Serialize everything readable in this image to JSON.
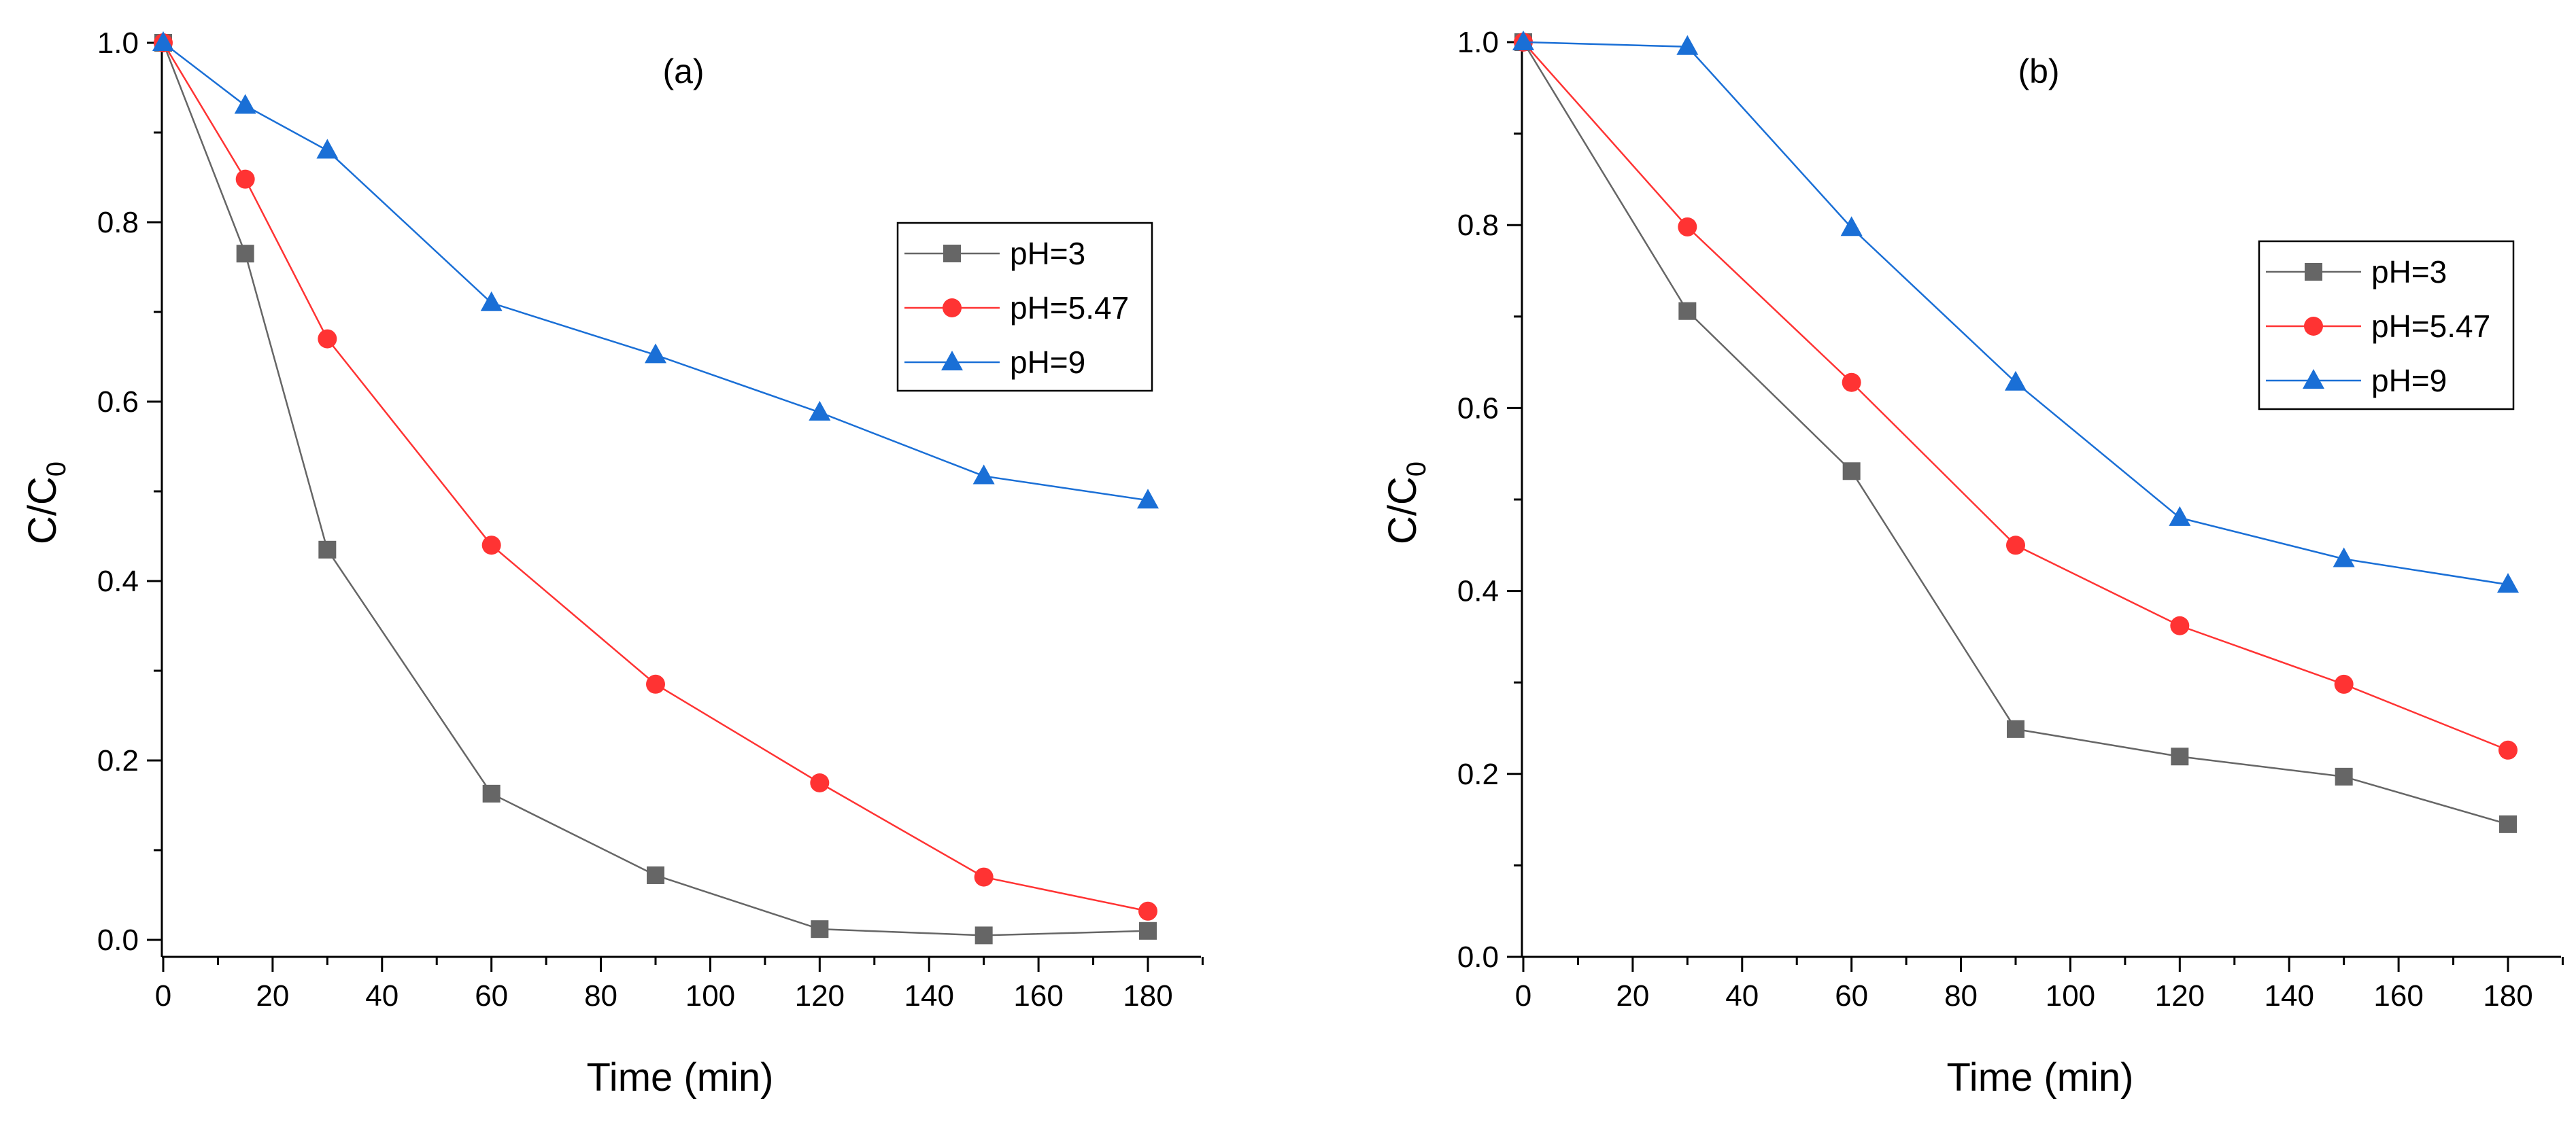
{
  "chart_data": [
    {
      "type": "line",
      "panel": "a",
      "title": "(a)",
      "xlabel": "Time (min)",
      "ylabel": {
        "main": "C/C",
        "subscript": "0"
      },
      "xlim": [
        0,
        190
      ],
      "ylim": [
        -0.02,
        1.0
      ],
      "xticks": [
        0,
        20,
        40,
        60,
        80,
        100,
        120,
        140,
        160,
        180
      ],
      "xtick_labels": [
        "0",
        "20",
        "40",
        "60",
        "80",
        "100",
        "120",
        "140",
        "160",
        "180"
      ],
      "yticks": [
        0.0,
        0.2,
        0.4,
        0.6,
        0.8,
        1.0
      ],
      "ytick_labels": [
        "0.0",
        "0.2",
        "0.4",
        "0.6",
        "0.8",
        "1.0"
      ],
      "legend_position": "right-upper",
      "series": [
        {
          "name": "pH=3",
          "color": "#666666",
          "marker": "square",
          "x": [
            0,
            15,
            30,
            60,
            90,
            120,
            150,
            180
          ],
          "y": [
            1.0,
            0.765,
            0.435,
            0.163,
            0.072,
            0.012,
            0.005,
            0.01
          ]
        },
        {
          "name": "pH=5.47",
          "color": "#ff3333",
          "marker": "circle",
          "x": [
            0,
            15,
            30,
            60,
            90,
            120,
            150,
            180
          ],
          "y": [
            1.0,
            0.848,
            0.67,
            0.44,
            0.285,
            0.175,
            0.07,
            0.032
          ]
        },
        {
          "name": "pH=9",
          "color": "#1a6fd6",
          "marker": "triangle",
          "x": [
            0,
            15,
            30,
            60,
            90,
            120,
            150,
            180
          ],
          "y": [
            1.0,
            0.93,
            0.88,
            0.71,
            0.652,
            0.588,
            0.517,
            0.49
          ]
        }
      ]
    },
    {
      "type": "line",
      "panel": "b",
      "title": "(b)",
      "xlabel": "Time (min)",
      "ylabel": {
        "main": "C/C",
        "subscript": "0"
      },
      "xlim": [
        0,
        190
      ],
      "ylim": [
        0.0,
        1.0
      ],
      "xticks": [
        0,
        20,
        40,
        60,
        80,
        100,
        120,
        140,
        160,
        180
      ],
      "xtick_labels": [
        "0",
        "20",
        "40",
        "60",
        "80",
        "100",
        "120",
        "140",
        "160",
        "180"
      ],
      "yticks": [
        0.0,
        0.2,
        0.4,
        0.6,
        0.8,
        1.0
      ],
      "ytick_labels": [
        "0.0",
        "0.2",
        "0.4",
        "0.6",
        "0.8",
        "1.0"
      ],
      "legend_position": "right-upper",
      "series": [
        {
          "name": "pH=3",
          "color": "#666666",
          "marker": "square",
          "x": [
            0,
            30,
            60,
            90,
            120,
            150,
            180
          ],
          "y": [
            1.0,
            0.706,
            0.531,
            0.249,
            0.219,
            0.197,
            0.145
          ]
        },
        {
          "name": "pH=5.47",
          "color": "#ff3333",
          "marker": "circle",
          "x": [
            0,
            30,
            60,
            90,
            120,
            150,
            180
          ],
          "y": [
            1.0,
            0.798,
            0.628,
            0.45,
            0.362,
            0.298,
            0.226
          ]
        },
        {
          "name": "pH=9",
          "color": "#1a6fd6",
          "marker": "triangle",
          "x": [
            0,
            30,
            60,
            90,
            120,
            150,
            180
          ],
          "y": [
            1.0,
            0.995,
            0.797,
            0.628,
            0.48,
            0.435,
            0.407
          ]
        }
      ]
    }
  ]
}
